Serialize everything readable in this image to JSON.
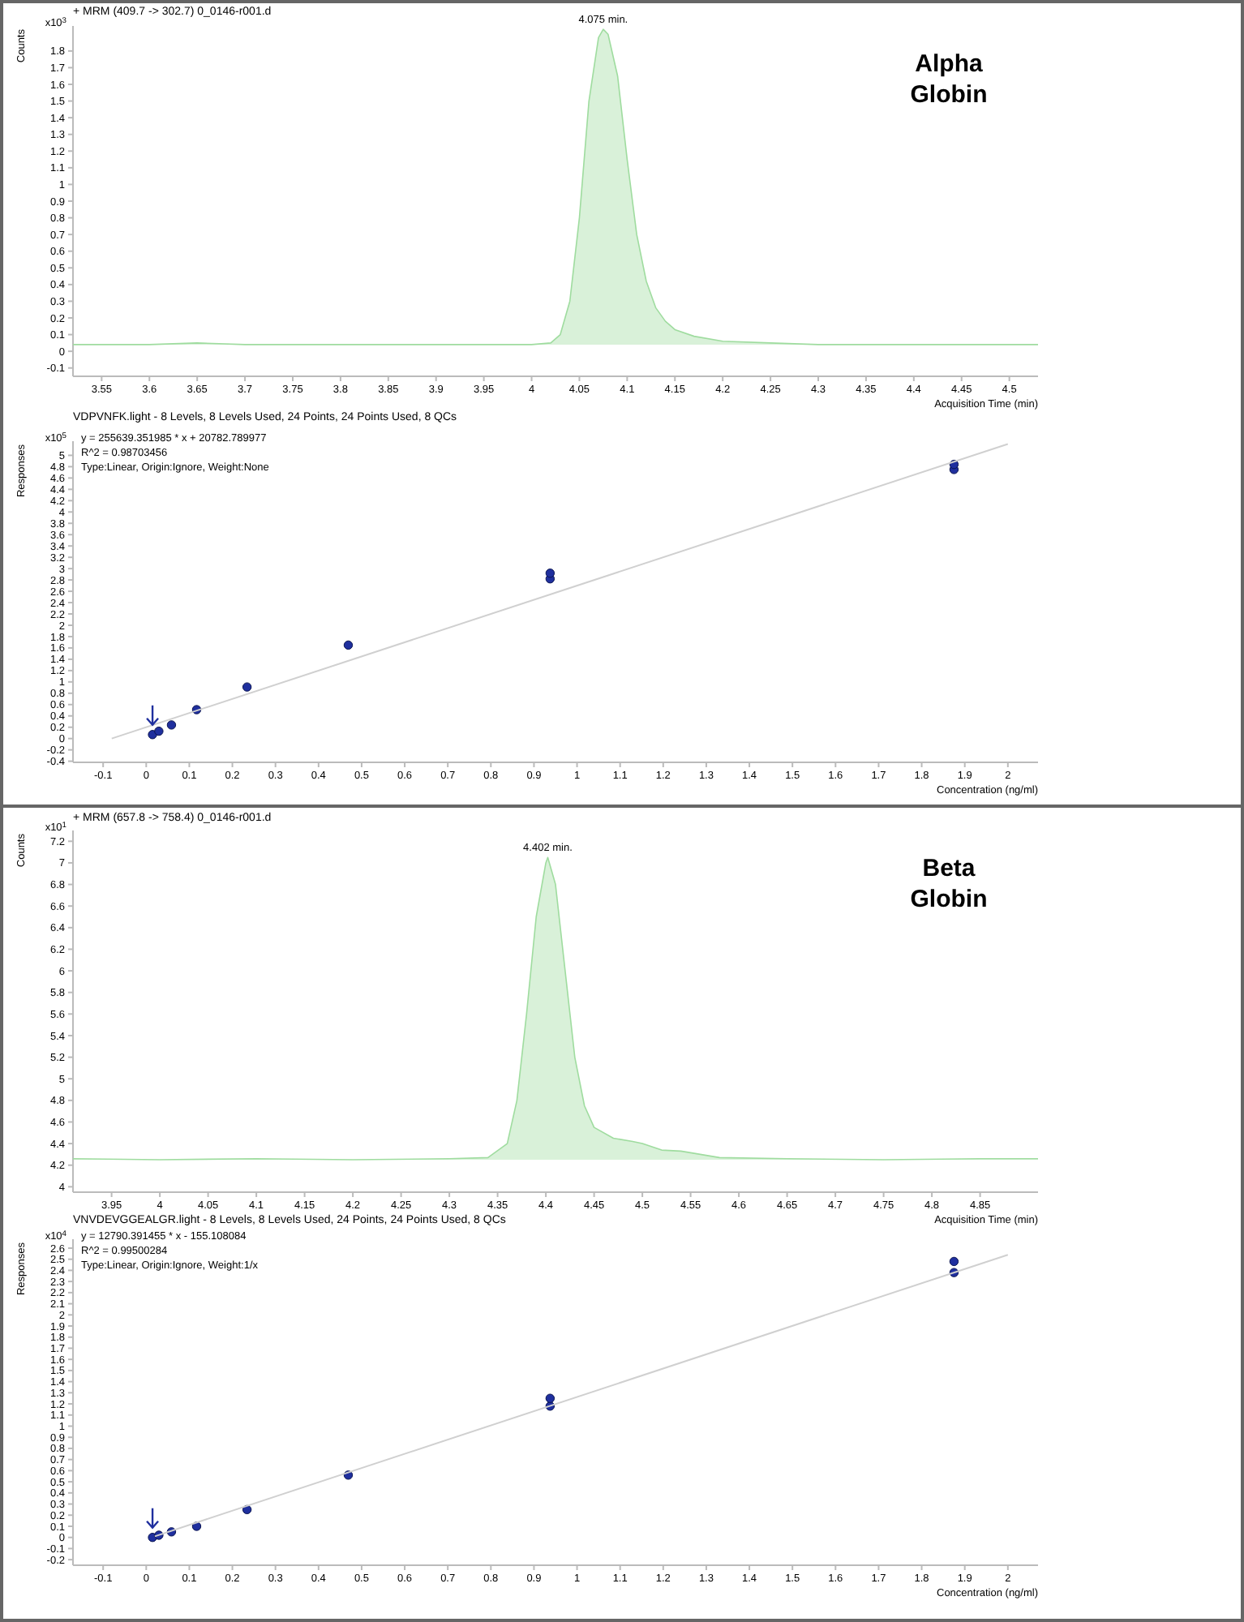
{
  "chart_data": [
    {
      "type": "area",
      "title": "+ MRM (409.7 -> 302.7) 0_0146-r001.d",
      "xlabel": "Acquisition Time (min)",
      "ylabel": "Counts",
      "color": "#9fdc9f",
      "x": [
        3.52,
        3.6,
        3.65,
        3.7,
        3.8,
        3.9,
        4.0,
        4.02,
        4.03,
        4.04,
        4.05,
        4.06,
        4.07,
        4.075,
        4.08,
        4.09,
        4.1,
        4.11,
        4.12,
        4.13,
        4.14,
        4.15,
        4.17,
        4.2,
        4.25,
        4.3,
        4.4,
        4.5,
        4.53
      ],
      "values": [
        0.04,
        0.04,
        0.05,
        0.04,
        0.04,
        0.04,
        0.04,
        0.05,
        0.1,
        0.3,
        0.8,
        1.5,
        1.88,
        1.93,
        1.9,
        1.65,
        1.15,
        0.7,
        0.42,
        0.26,
        0.18,
        0.13,
        0.09,
        0.06,
        0.05,
        0.04,
        0.04,
        0.04,
        0.04
      ],
      "xlim": [
        3.52,
        4.53
      ],
      "ylim": [
        -0.15,
        1.95
      ],
      "xticks": [
        3.55,
        3.6,
        3.65,
        3.7,
        3.75,
        3.8,
        3.85,
        3.9,
        3.95,
        4,
        4.05,
        4.1,
        4.15,
        4.2,
        4.25,
        4.3,
        4.35,
        4.4,
        4.45,
        4.5
      ],
      "yticks": [
        -0.1,
        0,
        0.1,
        0.2,
        0.3,
        0.4,
        0.5,
        0.6,
        0.7,
        0.8,
        0.9,
        1,
        1.1,
        1.2,
        1.3,
        1.4,
        1.5,
        1.6,
        1.7,
        1.8
      ],
      "annotations": [
        "x10$^{3}$",
        {
          "text": "4.075 min.",
          "x": 4.075,
          "y": 1.93
        },
        "Alpha Globin"
      ]
    },
    {
      "type": "scatter",
      "title": "VDPVNFK.light - 8 Levels, 8 Levels Used, 24 Points, 24 Points Used, 8 QCs",
      "xlabel": "Concentration (ng/ml)",
      "ylabel": "Responses",
      "series": [
        {
          "type": "scatter",
          "marker": "circle",
          "color": "#1f2f9e",
          "x": [
            0.0146,
            0.0293,
            0.0586,
            0.117,
            0.234,
            0.469,
            0.9375,
            0.9375,
            1.875,
            1.875
          ],
          "values": [
            0.07,
            0.13,
            0.24,
            0.51,
            0.91,
            1.65,
            2.82,
            2.92,
            4.75,
            4.84
          ]
        },
        {
          "type": "line",
          "marker": "none",
          "color": "#d0d0d0",
          "x": [
            -0.08,
            2.0
          ],
          "values": [
            0.0,
            5.2
          ]
        }
      ],
      "xlim": [
        -0.17,
        2.07
      ],
      "ylim": [
        -0.42,
        5.25
      ],
      "xticks": [
        -0.1,
        0,
        0.1,
        0.2,
        0.3,
        0.4,
        0.5,
        0.6,
        0.7,
        0.8,
        0.9,
        1,
        1.1,
        1.2,
        1.3,
        1.4,
        1.5,
        1.6,
        1.7,
        1.8,
        1.9,
        2
      ],
      "yticks": [
        -0.4,
        -0.2,
        0,
        0.2,
        0.4,
        0.6,
        0.8,
        1,
        1.2,
        1.4,
        1.6,
        1.8,
        2,
        2.2,
        2.4,
        2.6,
        2.8,
        3,
        3.2,
        3.4,
        3.6,
        3.8,
        4,
        4.2,
        4.4,
        4.6,
        4.8,
        5
      ],
      "annotations": [
        "x10$^{5}$",
        "y = 255639.351985 * x  + 20782.789977",
        "R^2 = 0.98703456",
        "Type:Linear, Origin:Ignore, Weight:None"
      ]
    },
    {
      "type": "area",
      "title": "+ MRM (657.8 -> 758.4) 0_0146-r001.d",
      "xlabel": "Acquisition Time (min)",
      "ylabel": "Counts",
      "color": "#9fdc9f",
      "x": [
        3.91,
        4.0,
        4.1,
        4.2,
        4.3,
        4.34,
        4.36,
        4.37,
        4.38,
        4.39,
        4.4,
        4.402,
        4.41,
        4.42,
        4.43,
        4.44,
        4.45,
        4.47,
        4.49,
        4.5,
        4.52,
        4.54,
        4.56,
        4.58,
        4.65,
        4.75,
        4.85,
        4.91
      ],
      "values": [
        4.26,
        4.25,
        4.26,
        4.25,
        4.26,
        4.27,
        4.4,
        4.8,
        5.6,
        6.5,
        7.0,
        7.05,
        6.8,
        6.0,
        5.2,
        4.75,
        4.55,
        4.45,
        4.42,
        4.4,
        4.34,
        4.33,
        4.3,
        4.27,
        4.26,
        4.25,
        4.26,
        4.26
      ],
      "xlim": [
        3.91,
        4.91
      ],
      "ylim": [
        3.95,
        7.3
      ],
      "xticks": [
        3.95,
        4,
        4.05,
        4.1,
        4.15,
        4.2,
        4.25,
        4.3,
        4.35,
        4.4,
        4.45,
        4.5,
        4.55,
        4.6,
        4.65,
        4.7,
        4.75,
        4.8,
        4.85
      ],
      "yticks": [
        4,
        4.2,
        4.4,
        4.6,
        4.8,
        5,
        5.2,
        5.4,
        5.6,
        5.8,
        6,
        6.2,
        6.4,
        6.6,
        6.8,
        7,
        7.2
      ],
      "annotations": [
        "x10$^{1}$",
        {
          "text": "4.402 min.",
          "x": 4.402,
          "y": 7.05
        },
        "Beta Globin"
      ]
    },
    {
      "type": "scatter",
      "title": "VNVDEVGGEALGR.light - 8 Levels, 8 Levels Used, 24 Points, 24 Points Used, 8 QCs",
      "xlabel": "Concentration (ng/ml)",
      "ylabel": "Responses",
      "series": [
        {
          "type": "scatter",
          "marker": "circle",
          "color": "#1f2f9e",
          "x": [
            0.0146,
            0.0293,
            0.0586,
            0.117,
            0.234,
            0.469,
            0.9375,
            0.9375,
            1.875,
            1.875
          ],
          "values": [
            0.0,
            0.02,
            0.05,
            0.1,
            0.25,
            0.56,
            1.18,
            1.25,
            2.38,
            2.48
          ]
        },
        {
          "type": "line",
          "marker": "none",
          "color": "#d0d0d0",
          "x": [
            0.02,
            2.0
          ],
          "values": [
            0.01,
            2.54
          ]
        }
      ],
      "xlim": [
        -0.17,
        2.07
      ],
      "ylim": [
        -0.25,
        2.68
      ],
      "xticks": [
        -0.1,
        0,
        0.1,
        0.2,
        0.3,
        0.4,
        0.5,
        0.6,
        0.7,
        0.8,
        0.9,
        1,
        1.1,
        1.2,
        1.3,
        1.4,
        1.5,
        1.6,
        1.7,
        1.8,
        1.9,
        2
      ],
      "yticks": [
        -0.2,
        -0.1,
        0,
        0.1,
        0.2,
        0.3,
        0.4,
        0.5,
        0.6,
        0.7,
        0.8,
        0.9,
        1,
        1.1,
        1.2,
        1.3,
        1.4,
        1.5,
        1.6,
        1.7,
        1.8,
        1.9,
        2,
        2.1,
        2.2,
        2.3,
        2.4,
        2.5,
        2.6
      ],
      "annotations": [
        "x10$^{4}$",
        "y = 12790.391455 * x  - 155.108084",
        "R^2 = 0.99500284",
        "Type:Linear, Origin:Ignore, Weight:1/x"
      ]
    }
  ]
}
